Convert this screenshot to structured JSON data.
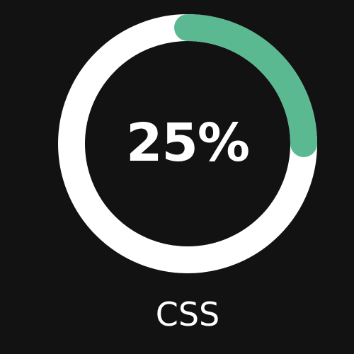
{
  "progress": {
    "value": 25,
    "percent_text": "25%",
    "label": "CSS"
  },
  "colors": {
    "background": "#121212",
    "track": "#ffffff",
    "progress": "#5bb992",
    "text": "#ffffff"
  }
}
